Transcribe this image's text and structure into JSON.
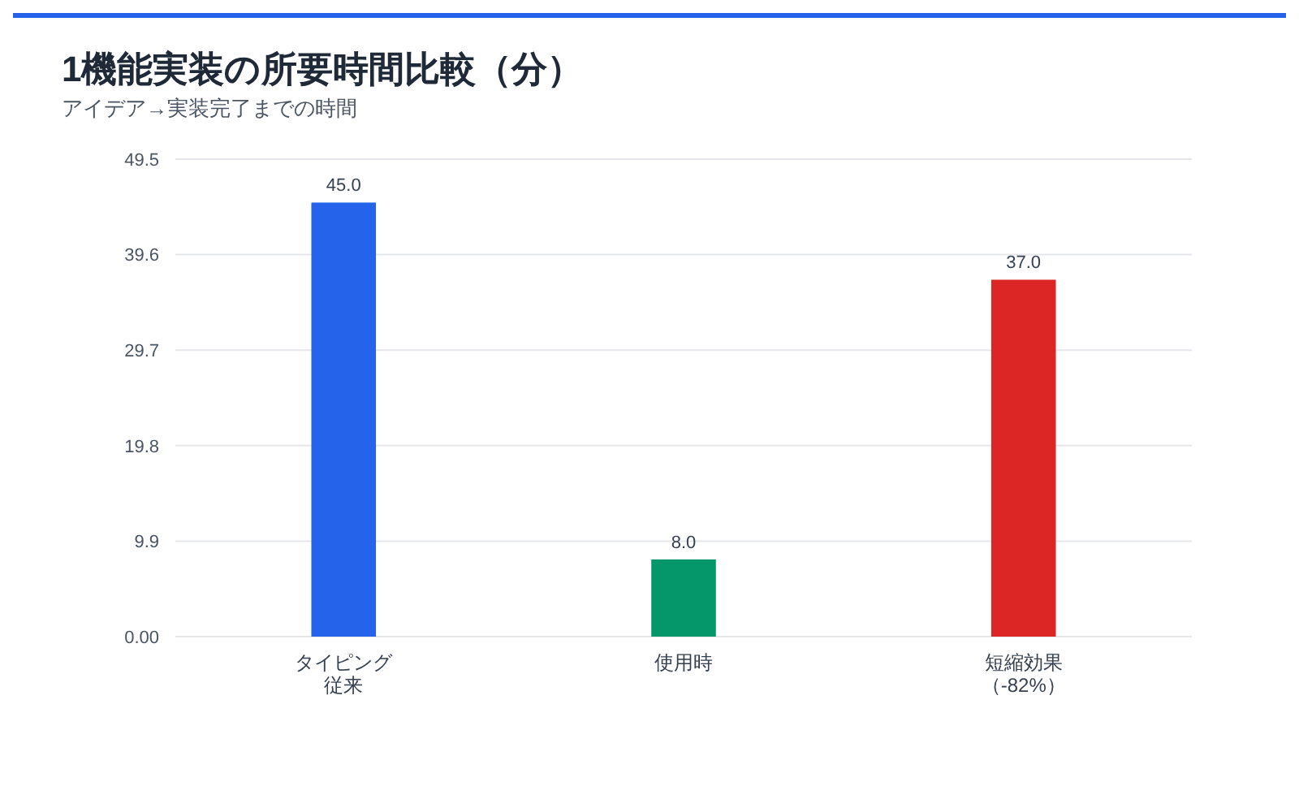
{
  "chart_data": {
    "type": "bar",
    "title": "1機能実装の所要時間比較（分）",
    "subtitle": "アイデア→実装完了までの時間",
    "categories": [
      "タイピング従来",
      "使用時",
      "短縮効果（-82%）"
    ],
    "values": [
      45.0,
      8.0,
      37.0
    ],
    "value_labels": [
      "45.0",
      "8.0",
      "37.0"
    ],
    "colors": [
      "#2563eb",
      "#059669",
      "#dc2626"
    ],
    "ylim": [
      0,
      49.5
    ],
    "yticks": [
      {
        "value": 0,
        "label": "0.00"
      },
      9.9,
      19.8,
      29.7,
      39.6,
      49.5
    ],
    "grid": "y"
  }
}
